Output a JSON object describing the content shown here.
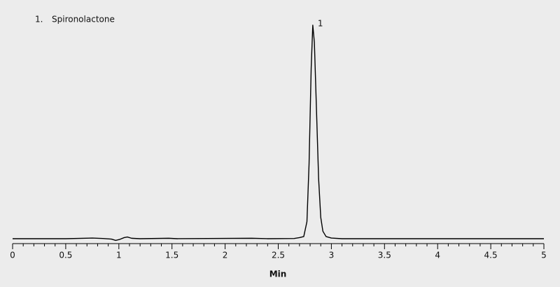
{
  "chart_data": {
    "type": "line",
    "legend_items": [
      {
        "number": "1.",
        "name": "Spironolactone"
      }
    ],
    "peak_labels": [
      "1"
    ],
    "x_label": "Min",
    "x": [
      0,
      0.5,
      0.75,
      0.85,
      0.93,
      0.97,
      1.01,
      1.05,
      1.08,
      1.12,
      1.2,
      1.47,
      1.55,
      2.25,
      2.4,
      2.65,
      2.7,
      2.74,
      2.77,
      2.79,
      2.81,
      2.825,
      2.84,
      2.86,
      2.88,
      2.9,
      2.92,
      2.95,
      3.0,
      3.1,
      5
    ],
    "series": [
      {
        "color": "#000000",
        "values": [
          0,
          0,
          0.3,
          0.1,
          -0.2,
          -0.8,
          -0.3,
          0.5,
          0.8,
          0.2,
          0,
          0.2,
          0,
          0.2,
          0,
          0.1,
          0.5,
          1,
          8,
          35,
          80,
          100,
          92,
          60,
          28,
          10,
          3.5,
          1,
          0.3,
          0,
          0
        ]
      }
    ],
    "xlim": [
      0,
      5
    ],
    "xticks": [
      0,
      0.5,
      1,
      1.5,
      2,
      2.5,
      3,
      3.5,
      4,
      4.5,
      5
    ],
    "minor_xticks": [
      0.1,
      0.2,
      0.3,
      0.4,
      0.6,
      0.7,
      0.8,
      0.9,
      1.1,
      1.2,
      1.3,
      1.4,
      1.6,
      1.7,
      1.8,
      1.9,
      2.1,
      2.2,
      2.3,
      2.4,
      2.6,
      2.7,
      2.8,
      2.9,
      3.1,
      3.2,
      3.3,
      3.4,
      3.6,
      3.7,
      3.8,
      3.9,
      4.1,
      4.2,
      4.3,
      4.4,
      4.6,
      4.7,
      4.8,
      4.9
    ],
    "ylim": [
      -2.3,
      100
    ]
  }
}
